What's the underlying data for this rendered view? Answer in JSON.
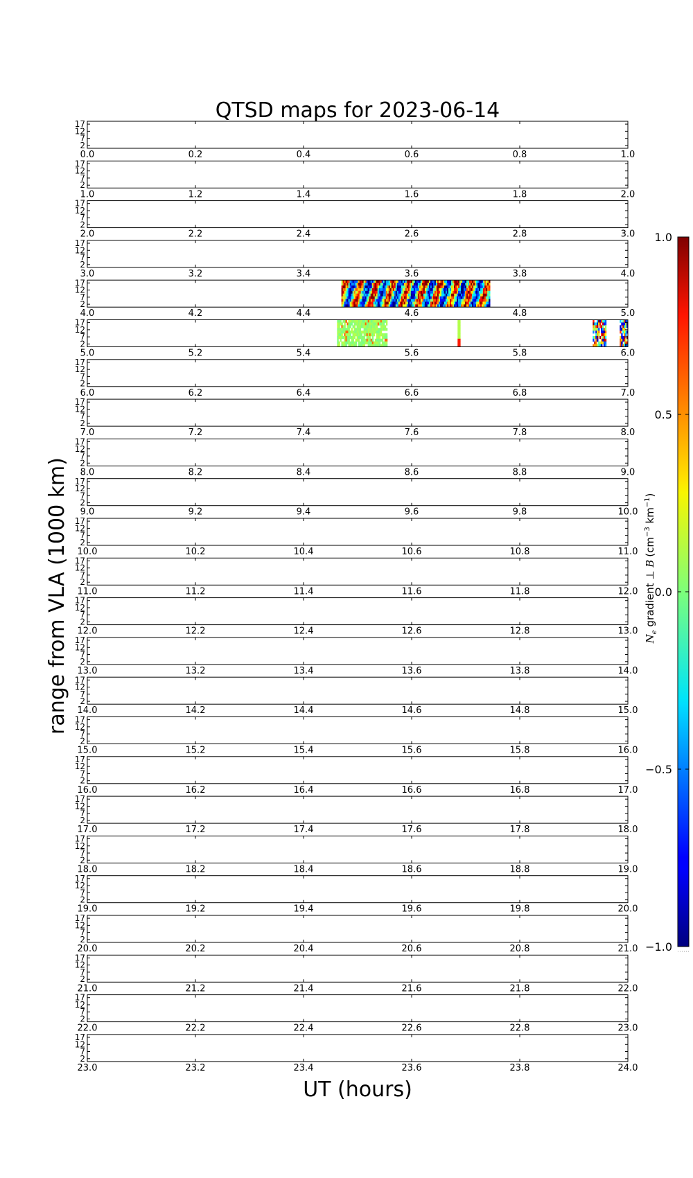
{
  "chart_data": {
    "type": "heatmap",
    "title": "QTSD maps for 2023-06-14",
    "xlabel": "UT (hours)",
    "ylabel": "range from VLA (1000 km)",
    "panel_count": 24,
    "panel_xspan_hours": 1.0,
    "x_tick_step": 0.2,
    "yticks": [
      "17",
      "12",
      "7",
      "2"
    ],
    "ylim": [
      0,
      19
    ],
    "colorbar": {
      "label": "N_e gradient ⊥ B (cm⁻³ km⁻¹)",
      "label_parts": {
        "ne": "N",
        "ne_sub": "e",
        "gradient": " gradient ⊥ ",
        "b": "B",
        "units": "(cm",
        "exp1": "−3",
        "mid": " km",
        "exp2": "−1",
        "close": ")"
      },
      "range": [
        -1.0,
        1.0
      ],
      "ticks": [
        "1.0",
        "0.5",
        "0.0",
        "−0.5",
        "−1.0"
      ],
      "tick_values": [
        1.0,
        0.5,
        0.0,
        -0.5,
        -1.0
      ],
      "colormap": "jet"
    },
    "data_segments": [
      {
        "panel_hour": 4,
        "start_ut": 4.47,
        "end_ut": 4.745,
        "pattern": "strong"
      },
      {
        "panel_hour": 5,
        "start_ut": 5.462,
        "end_ut": 5.555,
        "pattern": "weak"
      },
      {
        "panel_hour": 5,
        "start_ut": 5.685,
        "end_ut": 5.69,
        "pattern": "spike"
      },
      {
        "panel_hour": 5,
        "start_ut": 5.935,
        "end_ut": 5.96,
        "pattern": "mixed"
      },
      {
        "panel_hour": 5,
        "start_ut": 5.985,
        "end_ut": 6.0,
        "pattern": "mixed"
      }
    ]
  }
}
